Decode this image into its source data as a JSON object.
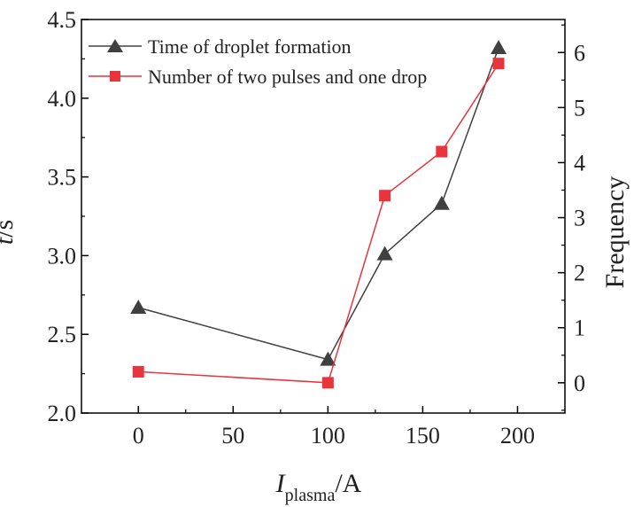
{
  "chart_data": {
    "type": "line",
    "x": [
      0,
      100,
      130,
      160,
      190
    ],
    "xlim": [
      -30,
      225
    ],
    "xticks": [
      0,
      50,
      100,
      150,
      200
    ],
    "xlabel": {
      "italic": "I",
      "sub": "plasma",
      "rest": "/A"
    },
    "ylabel_left": {
      "italic": "t",
      "rest": "/s"
    },
    "ylabel_right": "Frequency",
    "ylim_left": [
      2.0,
      4.5
    ],
    "yticks_left": [
      "2.0",
      "2.5",
      "3.0",
      "3.5",
      "4.0",
      "4.5"
    ],
    "ylim_right": [
      -0.55,
      6.6
    ],
    "yticks_right": [
      0,
      1,
      2,
      3,
      4,
      5,
      6
    ],
    "legend_position": "top-left",
    "series": [
      {
        "name": "Time of droplet formation",
        "axis": "left",
        "marker": "triangle",
        "color": "#404040",
        "values": [
          2.67,
          2.34,
          3.01,
          3.33,
          4.32
        ]
      },
      {
        "name": "Number of two pulses and one drop",
        "axis": "right",
        "marker": "square",
        "color": "#e8343b",
        "values": [
          0.2,
          0.0,
          3.4,
          4.2,
          5.8
        ]
      }
    ]
  }
}
